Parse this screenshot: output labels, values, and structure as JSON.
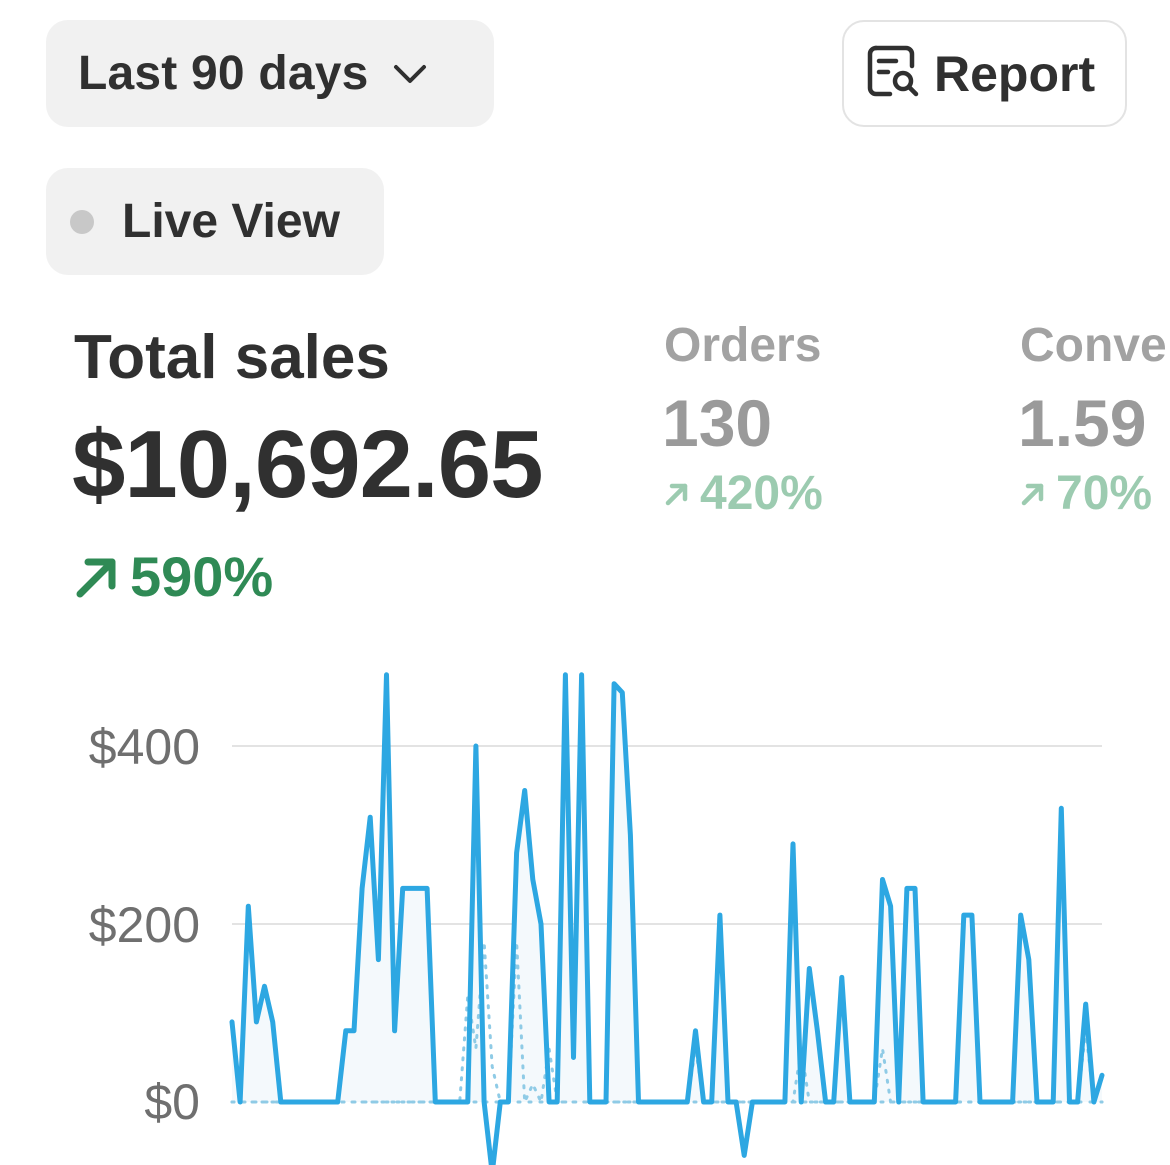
{
  "filters": {
    "date_range_label": "Last 90 days",
    "live_view_label": "Live View",
    "report_label": "Report"
  },
  "metrics": {
    "total_sales": {
      "title": "Total sales",
      "value": "$10,692.65",
      "change": "590%"
    },
    "orders": {
      "title": "Orders",
      "value": "130",
      "change": "420%"
    },
    "conversion": {
      "title": "Conve",
      "value": "1.59",
      "change": "70%"
    }
  },
  "colors": {
    "series": "#2da7e2",
    "positive_change": "#2f8a55",
    "positive_change_muted": "#9ccbb0",
    "gridline": "#e3e3e3"
  },
  "icons": {
    "chevron": "chevron-down-icon",
    "report": "report-search-icon",
    "arrow": "arrow-up-right-icon"
  },
  "chart_data": {
    "type": "line",
    "ylim": [
      0,
      500
    ],
    "yticks": [
      "$0",
      "$200",
      "$400"
    ],
    "grid": true,
    "series": [
      {
        "style": "solid",
        "values": [
          90,
          0,
          220,
          90,
          130,
          90,
          0,
          0,
          0,
          0,
          0,
          0,
          0,
          0,
          80,
          80,
          240,
          320,
          160,
          480,
          80,
          240,
          240,
          240,
          240,
          0,
          0,
          0,
          0,
          0,
          400,
          0,
          -80,
          0,
          0,
          280,
          350,
          250,
          200,
          0,
          0,
          480,
          50,
          480,
          0,
          0,
          0,
          470,
          460,
          300,
          0,
          0,
          0,
          0,
          0,
          0,
          0,
          80,
          0,
          0,
          210,
          0,
          0,
          -60,
          0,
          0,
          0,
          0,
          0,
          290,
          0,
          150,
          80,
          0,
          0,
          140,
          0,
          0,
          0,
          0,
          250,
          220,
          0,
          240,
          240,
          0,
          0,
          0,
          0,
          0,
          210,
          210,
          0,
          0,
          0,
          0,
          0,
          210,
          160,
          0,
          0,
          0,
          330,
          0,
          0,
          110,
          0,
          30
        ]
      },
      {
        "style": "dotted",
        "values": [
          0,
          0,
          0,
          0,
          0,
          0,
          0,
          0,
          0,
          0,
          0,
          0,
          0,
          0,
          0,
          0,
          0,
          0,
          0,
          0,
          0,
          0,
          0,
          0,
          0,
          0,
          0,
          0,
          0,
          120,
          60,
          180,
          40,
          0,
          0,
          180,
          0,
          20,
          0,
          60,
          0,
          0,
          0,
          0,
          0,
          0,
          0,
          0,
          0,
          0,
          0,
          0,
          0,
          0,
          0,
          0,
          0,
          60,
          0,
          0,
          0,
          0,
          0,
          0,
          0,
          0,
          0,
          0,
          0,
          0,
          60,
          0,
          0,
          0,
          0,
          0,
          0,
          0,
          0,
          0,
          60,
          0,
          0,
          0,
          0,
          0,
          0,
          0,
          0,
          0,
          0,
          0,
          0,
          0,
          0,
          0,
          0,
          0,
          0,
          0,
          0,
          0,
          0,
          0,
          0,
          80,
          0,
          0
        ]
      }
    ]
  }
}
